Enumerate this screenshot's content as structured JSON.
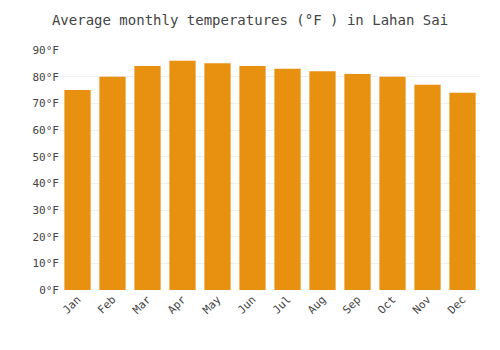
{
  "chart_data": {
    "type": "bar",
    "title": "Average monthly temperatures (°F ) in Lahan Sai",
    "categories": [
      "Jan",
      "Feb",
      "Mar",
      "Apr",
      "May",
      "Jun",
      "Jul",
      "Aug",
      "Sep",
      "Oct",
      "Nov",
      "Dec"
    ],
    "values": [
      75,
      80,
      84,
      86,
      85,
      84,
      83,
      82,
      81,
      80,
      77,
      74
    ],
    "color": "#E89010",
    "ylim": [
      0,
      90
    ],
    "yticks": [
      {
        "value": 0,
        "label": "0°F"
      },
      {
        "value": 10,
        "label": "10°F"
      },
      {
        "value": 20,
        "label": "20°F"
      },
      {
        "value": 30,
        "label": "30°F"
      },
      {
        "value": 40,
        "label": "40°F"
      },
      {
        "value": 50,
        "label": "50°F"
      },
      {
        "value": 60,
        "label": "60°F"
      },
      {
        "value": 70,
        "label": "70°F"
      },
      {
        "value": 80,
        "label": "80°F"
      },
      {
        "value": 90,
        "label": "90°F"
      }
    ],
    "grid": true
  }
}
